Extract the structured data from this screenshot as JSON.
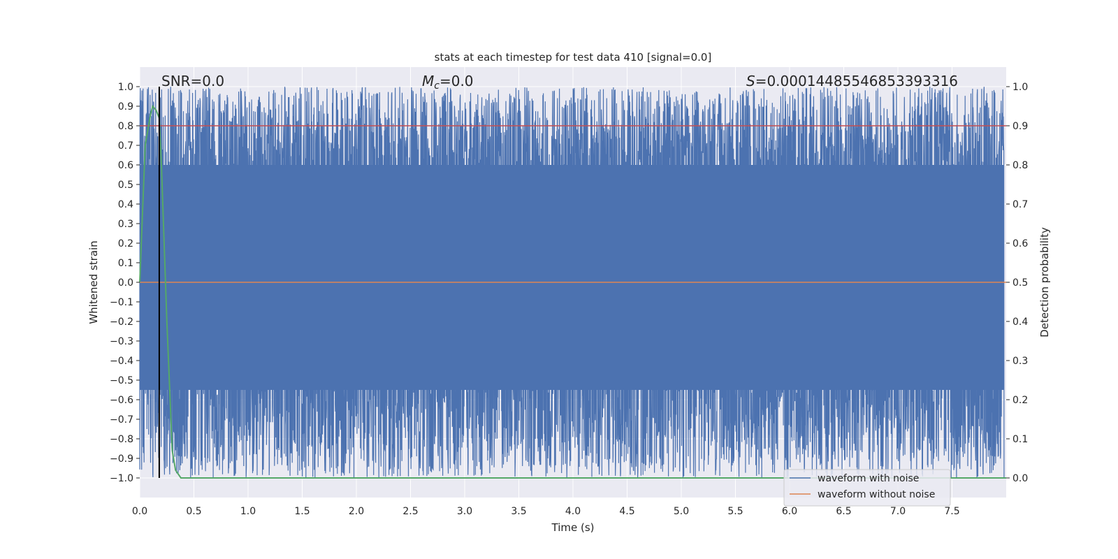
{
  "chart_data": {
    "type": "line",
    "title": "stats at each timestep for test data 410 [signal=0.0]",
    "xlabel": "Time (s)",
    "ylabel": "Whitened strain",
    "y2label": "Detection probability",
    "xlim": [
      0.0,
      8.0
    ],
    "ylim": [
      -1.1,
      1.1
    ],
    "y2lim": [
      -0.05,
      1.05
    ],
    "xticks": [
      "0.0",
      "0.5",
      "1.0",
      "1.5",
      "2.0",
      "2.5",
      "3.0",
      "3.5",
      "4.0",
      "4.5",
      "5.0",
      "5.5",
      "6.0",
      "6.5",
      "7.0",
      "7.5"
    ],
    "xtick_values": [
      0.0,
      0.5,
      1.0,
      1.5,
      2.0,
      2.5,
      3.0,
      3.5,
      4.0,
      4.5,
      5.0,
      5.5,
      6.0,
      6.5,
      7.0,
      7.5
    ],
    "yticks": [
      "1.0",
      "0.9",
      "0.8",
      "0.7",
      "0.6",
      "0.5",
      "0.4",
      "0.3",
      "0.2",
      "0.1",
      "0.0",
      "−0.1",
      "−0.2",
      "−0.3",
      "−0.4",
      "−0.5",
      "−0.6",
      "−0.7",
      "−0.8",
      "−0.9",
      "−1.0"
    ],
    "ytick_values": [
      1.0,
      0.9,
      0.8,
      0.7,
      0.6,
      0.5,
      0.4,
      0.3,
      0.2,
      0.1,
      0.0,
      -0.1,
      -0.2,
      -0.3,
      -0.4,
      -0.5,
      -0.6,
      -0.7,
      -0.8,
      -0.9,
      -1.0
    ],
    "y2ticks": [
      "1.0",
      "0.9",
      "0.8",
      "0.7",
      "0.6",
      "0.5",
      "0.4",
      "0.3",
      "0.2",
      "0.1",
      "0.0"
    ],
    "y2tick_values": [
      1.0,
      0.9,
      0.8,
      0.7,
      0.6,
      0.5,
      0.4,
      0.3,
      0.2,
      0.1,
      0.0
    ],
    "grid": true,
    "legend_position": "bottom-right",
    "annotations": {
      "snr": "SNR=0.0",
      "mc_symbol": "M",
      "mc_sub": "c",
      "mc_value": "=0.0",
      "s_symbol": "S",
      "s_value": "=0.00014485546853393316"
    },
    "series": [
      {
        "name": "waveform with noise",
        "color": "#4c72b0",
        "kind": "dense noise spanning approximately -1.0 to 1.0 over the full time range"
      },
      {
        "name": "waveform without noise",
        "color": "#dd8452",
        "x": [
          0.0,
          8.0
        ],
        "y": [
          0.0,
          0.0
        ]
      },
      {
        "color": "#55a868",
        "axis": "right",
        "x": [
          0.0,
          0.05,
          0.1,
          0.12,
          0.15,
          0.18,
          0.2,
          0.25,
          0.3,
          0.33,
          0.38,
          0.5,
          8.0
        ],
        "y": [
          0.5,
          0.85,
          0.93,
          0.95,
          0.94,
          0.92,
          0.8,
          0.4,
          0.07,
          0.02,
          0.0,
          0.0,
          0.0
        ]
      }
    ],
    "threshold_line": {
      "color": "#c44e52",
      "axis": "right",
      "value": 0.9
    },
    "vertical_marker": {
      "color": "#000000",
      "x": 0.18
    }
  }
}
